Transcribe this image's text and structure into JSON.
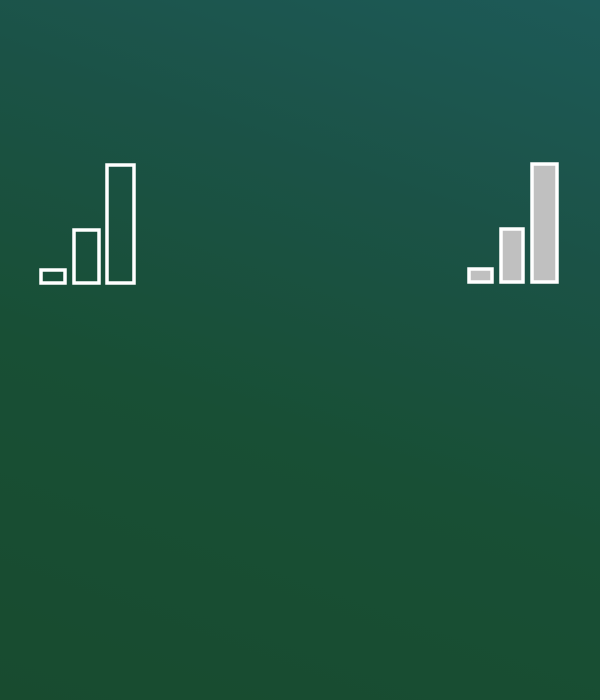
{
  "screen": {
    "background_colors": [
      "#1d5a58",
      "#1b5246",
      "#184f35",
      "#184b2f"
    ]
  },
  "indicators": [
    {
      "icon": "signal-strength-icon",
      "bars": 3,
      "filled": false,
      "outline_color": "#ffffff",
      "fill_color": "none"
    },
    {
      "icon": "signal-strength-icon",
      "bars": 3,
      "filled": true,
      "outline_color": "#ffffff",
      "fill_color": "#c0c0c0"
    }
  ]
}
